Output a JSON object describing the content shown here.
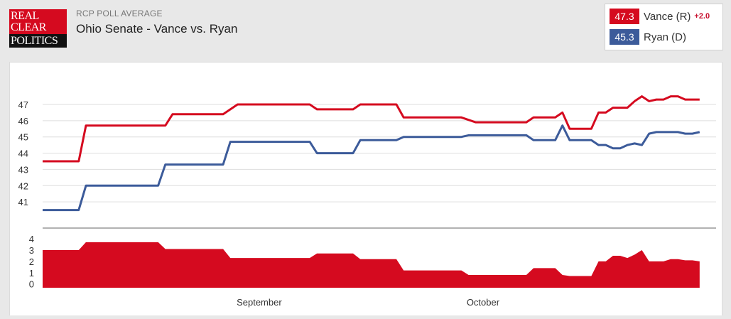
{
  "header": {
    "logo_lines": [
      "REAL",
      "CLEAR",
      "POLITICS"
    ],
    "sup_title": "RCP POLL AVERAGE",
    "title": "Ohio Senate - Vance vs. Ryan"
  },
  "legend": {
    "items": [
      {
        "value": "47.3",
        "label": "Vance (R)",
        "color": "#d50a1f",
        "spread": "+2.0"
      },
      {
        "value": "45.3",
        "label": "Ryan (D)",
        "color": "#3c5b9a"
      }
    ]
  },
  "colors": {
    "republican": "#d50a1f",
    "democrat": "#3c5b9a",
    "spread": "#d50a1f",
    "grid": "#dddddd",
    "divider": "#999999"
  },
  "chart_data": {
    "type": "line",
    "x_axis": {
      "tick_labels": [
        "September",
        "October"
      ],
      "tick_days": [
        30,
        61
      ],
      "range_days": [
        0,
        100
      ]
    },
    "panels": [
      {
        "name": "poll-average",
        "type": "line",
        "yticks": [
          41,
          42,
          43,
          44,
          45,
          46,
          47
        ],
        "ylim": [
          40.0,
          48.4
        ],
        "grid": true,
        "series": [
          {
            "name": "Vance (R)",
            "color": "#d50a1f",
            "points": [
              [
                0,
                43.5
              ],
              [
                5,
                43.5
              ],
              [
                6,
                45.7
              ],
              [
                16,
                45.7
              ],
              [
                17,
                45.7
              ],
              [
                18,
                46.4
              ],
              [
                25,
                46.4
              ],
              [
                27,
                47.0
              ],
              [
                37,
                47.0
              ],
              [
                38,
                46.7
              ],
              [
                43,
                46.7
              ],
              [
                44,
                47.0
              ],
              [
                49,
                47.0
              ],
              [
                50,
                46.2
              ],
              [
                58,
                46.2
              ],
              [
                60,
                45.9
              ],
              [
                67,
                45.9
              ],
              [
                68,
                46.2
              ],
              [
                71,
                46.2
              ],
              [
                72,
                46.5
              ],
              [
                73,
                45.5
              ],
              [
                76,
                45.5
              ],
              [
                77,
                46.5
              ],
              [
                78,
                46.5
              ],
              [
                79,
                46.8
              ],
              [
                81,
                46.8
              ],
              [
                82,
                47.2
              ],
              [
                83,
                47.5
              ],
              [
                84,
                47.2
              ],
              [
                85,
                47.3
              ],
              [
                86,
                47.3
              ],
              [
                87,
                47.5
              ],
              [
                88,
                47.5
              ],
              [
                89,
                47.3
              ],
              [
                91,
                47.3
              ]
            ]
          },
          {
            "name": "Ryan (D)",
            "color": "#3c5b9a",
            "points": [
              [
                0,
                40.5
              ],
              [
                5,
                40.5
              ],
              [
                6,
                42.0
              ],
              [
                16,
                42.0
              ],
              [
                17,
                43.3
              ],
              [
                25,
                43.3
              ],
              [
                26,
                44.7
              ],
              [
                37,
                44.7
              ],
              [
                38,
                44.0
              ],
              [
                43,
                44.0
              ],
              [
                44,
                44.8
              ],
              [
                49,
                44.8
              ],
              [
                50,
                45.0
              ],
              [
                58,
                45.0
              ],
              [
                59,
                45.1
              ],
              [
                67,
                45.1
              ],
              [
                68,
                44.8
              ],
              [
                71,
                44.8
              ],
              [
                72,
                45.7
              ],
              [
                73,
                44.8
              ],
              [
                76,
                44.8
              ],
              [
                77,
                44.5
              ],
              [
                78,
                44.5
              ],
              [
                79,
                44.3
              ],
              [
                80,
                44.3
              ],
              [
                81,
                44.5
              ],
              [
                82,
                44.6
              ],
              [
                83,
                44.5
              ],
              [
                84,
                45.2
              ],
              [
                85,
                45.3
              ],
              [
                88,
                45.3
              ],
              [
                89,
                45.2
              ],
              [
                90,
                45.2
              ],
              [
                91,
                45.3
              ]
            ]
          }
        ]
      },
      {
        "name": "spread",
        "type": "area",
        "yticks": [
          0,
          1,
          2,
          3,
          4
        ],
        "ylim": [
          -0.4,
          4.2
        ],
        "series": [
          {
            "name": "Spread",
            "color": "#d50a1f",
            "points": [
              [
                0,
                3.0
              ],
              [
                5,
                3.0
              ],
              [
                6,
                3.7
              ],
              [
                16,
                3.7
              ],
              [
                17,
                3.1
              ],
              [
                25,
                3.1
              ],
              [
                26,
                2.3
              ],
              [
                37,
                2.3
              ],
              [
                38,
                2.7
              ],
              [
                43,
                2.7
              ],
              [
                44,
                2.2
              ],
              [
                49,
                2.2
              ],
              [
                50,
                1.2
              ],
              [
                58,
                1.2
              ],
              [
                59,
                0.8
              ],
              [
                67,
                0.8
              ],
              [
                68,
                1.4
              ],
              [
                71,
                1.4
              ],
              [
                72,
                0.8
              ],
              [
                73,
                0.7
              ],
              [
                76,
                0.7
              ],
              [
                77,
                2.0
              ],
              [
                78,
                2.0
              ],
              [
                79,
                2.5
              ],
              [
                80,
                2.5
              ],
              [
                81,
                2.3
              ],
              [
                82,
                2.6
              ],
              [
                83,
                3.0
              ],
              [
                84,
                2.0
              ],
              [
                86,
                2.0
              ],
              [
                87,
                2.2
              ],
              [
                88,
                2.2
              ],
              [
                89,
                2.1
              ],
              [
                90,
                2.1
              ],
              [
                91,
                2.0
              ]
            ]
          }
        ]
      }
    ]
  }
}
